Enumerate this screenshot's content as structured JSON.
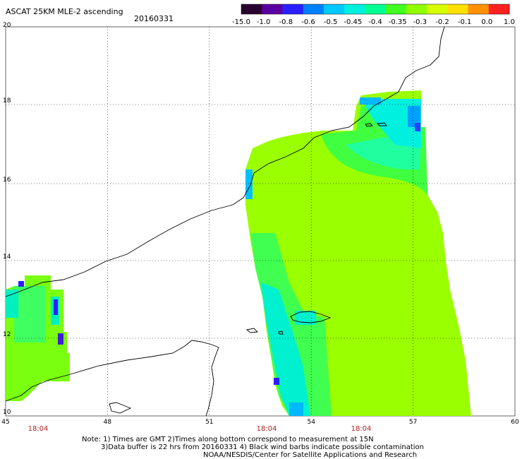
{
  "header": {
    "title": "ASCAT 25KM MLE-2 ascending",
    "date": "20160331"
  },
  "colorbar": {
    "labels": [
      "-15.0",
      "-1.0",
      "-0.8",
      "-0.6",
      "-0.5",
      "-0.45",
      "-0.4",
      "-0.35",
      "-0.3",
      "-0.2",
      "-0.1",
      "0.0",
      "1.0"
    ],
    "colors": [
      "#2a0030",
      "#5a00a0",
      "#2a20ff",
      "#0080ff",
      "#00c8ff",
      "#00f0e0",
      "#00ff90",
      "#40ff20",
      "#90ff00",
      "#d8ff00",
      "#ffe000",
      "#ff9000",
      "#ff2020"
    ]
  },
  "map": {
    "lon_labels": [
      "45",
      "48",
      "51",
      "54",
      "57",
      "60"
    ],
    "lat_labels": [
      "20",
      "18",
      "16",
      "14",
      "12",
      "10"
    ],
    "pass_times": [
      "18:04",
      "18:04",
      "18:04"
    ]
  },
  "footer": {
    "note_line1": "Note: 1) Times are GMT 2)Times along bottom correspond to measurement at 15N",
    "note_line2": "3)Data buffer is 22 hrs from 20160331 4) Black wind barbs indicate possible contamination",
    "credit": "NOAA/NESDIS/Center for Satellite Applications and Research"
  }
}
